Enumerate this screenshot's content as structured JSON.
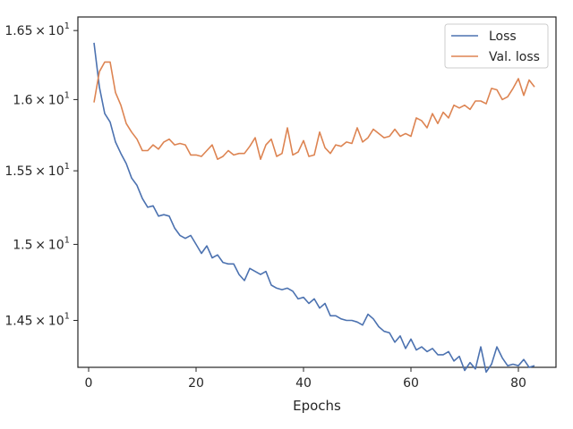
{
  "chart_data": {
    "type": "line",
    "xlabel": "Epochs",
    "ylabel": "",
    "xlim": [
      -2,
      87
    ],
    "ylim": [
      14.2,
      16.6
    ],
    "log_y": true,
    "x_ticks": [
      0,
      20,
      40,
      60,
      80
    ],
    "x_tick_labels": [
      "0",
      "20",
      "40",
      "60",
      "80"
    ],
    "y_ticks": [
      14.5,
      15.0,
      15.5,
      16.0,
      16.5
    ],
    "y_tick_labels": [
      {
        "base": "1.45",
        "times": "×",
        "power_base": "10",
        "exp": "1"
      },
      {
        "base": "1.5",
        "times": "×",
        "power_base": "10",
        "exp": "1"
      },
      {
        "base": "1.55",
        "times": "×",
        "power_base": "10",
        "exp": "1"
      },
      {
        "base": "1.6",
        "times": "×",
        "power_base": "10",
        "exp": "1"
      },
      {
        "base": "1.65",
        "times": "×",
        "power_base": "10",
        "exp": "1"
      }
    ],
    "grid": false,
    "legend_position": "top-right",
    "x": [
      1,
      2,
      3,
      4,
      5,
      6,
      7,
      8,
      9,
      10,
      11,
      12,
      13,
      14,
      15,
      16,
      17,
      18,
      19,
      20,
      21,
      22,
      23,
      24,
      25,
      26,
      27,
      28,
      29,
      30,
      31,
      32,
      33,
      34,
      35,
      36,
      37,
      38,
      39,
      40,
      41,
      42,
      43,
      44,
      45,
      46,
      47,
      48,
      49,
      50,
      51,
      52,
      53,
      54,
      55,
      56,
      57,
      58,
      59,
      60,
      61,
      62,
      63,
      64,
      65,
      66,
      67,
      68,
      69,
      70,
      71,
      72,
      73,
      74,
      75,
      76,
      77,
      78,
      79,
      80,
      81,
      82,
      83
    ],
    "series": [
      {
        "name": "Loss",
        "color": "#4c72b0",
        "values": [
          16.41,
          16.09,
          15.9,
          15.84,
          15.7,
          15.62,
          15.55,
          15.45,
          15.4,
          15.31,
          15.25,
          15.26,
          15.19,
          15.2,
          15.19,
          15.11,
          15.06,
          15.04,
          15.06,
          15.0,
          14.94,
          14.99,
          14.91,
          14.93,
          14.88,
          14.87,
          14.87,
          14.8,
          14.76,
          14.84,
          14.82,
          14.8,
          14.82,
          14.73,
          14.71,
          14.7,
          14.71,
          14.69,
          14.64,
          14.65,
          14.61,
          14.64,
          14.58,
          14.61,
          14.53,
          14.53,
          14.51,
          14.5,
          14.5,
          14.49,
          14.47,
          14.54,
          14.51,
          14.46,
          14.43,
          14.42,
          14.36,
          14.4,
          14.32,
          14.38,
          14.31,
          14.33,
          14.3,
          14.32,
          14.28,
          14.28,
          14.3,
          14.24,
          14.27,
          14.18,
          14.23,
          14.19,
          14.33,
          14.17,
          14.22,
          14.33,
          14.26,
          14.21,
          14.22,
          14.21,
          14.25,
          14.2,
          14.21
        ]
      },
      {
        "name": "Val. loss",
        "color": "#dd8452",
        "values": [
          15.98,
          16.2,
          16.27,
          16.27,
          16.05,
          15.96,
          15.83,
          15.77,
          15.72,
          15.64,
          15.64,
          15.68,
          15.65,
          15.7,
          15.72,
          15.68,
          15.69,
          15.68,
          15.61,
          15.61,
          15.6,
          15.64,
          15.68,
          15.58,
          15.6,
          15.64,
          15.61,
          15.62,
          15.62,
          15.67,
          15.73,
          15.58,
          15.68,
          15.72,
          15.6,
          15.62,
          15.8,
          15.61,
          15.63,
          15.71,
          15.6,
          15.61,
          15.77,
          15.66,
          15.62,
          15.68,
          15.67,
          15.7,
          15.69,
          15.8,
          15.7,
          15.73,
          15.79,
          15.76,
          15.73,
          15.74,
          15.79,
          15.74,
          15.76,
          15.74,
          15.87,
          15.85,
          15.8,
          15.9,
          15.83,
          15.91,
          15.87,
          15.96,
          15.94,
          15.96,
          15.93,
          15.99,
          15.99,
          15.97,
          16.08,
          16.07,
          16.0,
          16.02,
          16.08,
          16.15,
          16.03,
          16.14,
          16.09
        ]
      }
    ]
  }
}
